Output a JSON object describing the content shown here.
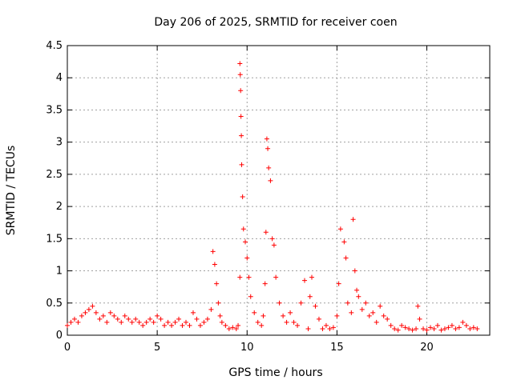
{
  "chart_data": {
    "type": "scatter",
    "title": "Day 206 of 2025, SRMTID for receiver coen",
    "xlabel": "GPS time / hours",
    "ylabel": "SRMTID / TECUs",
    "xlim": [
      0,
      23.5
    ],
    "ylim": [
      0,
      4.5
    ],
    "grid": true,
    "marker": "plus",
    "color": "#ff0000",
    "x_ticks": [
      {
        "value": 0,
        "label": "0"
      },
      {
        "value": 5,
        "label": "5"
      },
      {
        "value": 10,
        "label": "10"
      },
      {
        "value": 15,
        "label": "15"
      },
      {
        "value": 20,
        "label": "20"
      }
    ],
    "y_ticks": [
      {
        "value": 0,
        "label": "0"
      },
      {
        "value": 0.5,
        "label": "0.5"
      },
      {
        "value": 1,
        "label": "1"
      },
      {
        "value": 1.5,
        "label": "1.5"
      },
      {
        "value": 2,
        "label": "2"
      },
      {
        "value": 2.5,
        "label": "2.5"
      },
      {
        "value": 3,
        "label": "3"
      },
      {
        "value": 3.5,
        "label": "3.5"
      },
      {
        "value": 4,
        "label": "4"
      },
      {
        "value": 4.5,
        "label": "4.5"
      }
    ],
    "series": [
      {
        "name": "SRMTID",
        "x": [
          0.0,
          0.2,
          0.4,
          0.6,
          0.8,
          1.0,
          1.2,
          1.4,
          1.6,
          1.8,
          2.0,
          2.2,
          2.4,
          2.6,
          2.8,
          3.0,
          3.2,
          3.4,
          3.6,
          3.8,
          4.0,
          4.2,
          4.4,
          4.6,
          4.8,
          5.0,
          5.2,
          5.4,
          5.6,
          5.8,
          6.0,
          6.2,
          6.4,
          6.6,
          6.8,
          7.0,
          7.2,
          7.4,
          7.6,
          7.8,
          8.0,
          8.1,
          8.2,
          8.3,
          8.4,
          8.5,
          8.6,
          8.8,
          9.0,
          9.2,
          9.4,
          9.5,
          9.6,
          9.6,
          9.62,
          9.64,
          9.66,
          9.68,
          9.7,
          9.75,
          9.8,
          9.9,
          10.0,
          10.1,
          10.2,
          10.4,
          10.6,
          10.8,
          10.9,
          11.0,
          11.05,
          11.1,
          11.15,
          11.2,
          11.3,
          11.4,
          11.5,
          11.6,
          11.8,
          12.0,
          12.2,
          12.4,
          12.6,
          12.8,
          13.0,
          13.2,
          13.4,
          13.5,
          13.6,
          13.8,
          14.0,
          14.2,
          14.4,
          14.6,
          14.8,
          15.0,
          15.1,
          15.2,
          15.4,
          15.5,
          15.6,
          15.8,
          15.9,
          16.0,
          16.1,
          16.2,
          16.4,
          16.6,
          16.8,
          17.0,
          17.2,
          17.4,
          17.6,
          17.8,
          18.0,
          18.2,
          18.4,
          18.6,
          18.8,
          19.0,
          19.2,
          19.4,
          19.5,
          19.6,
          19.8,
          20.0,
          20.2,
          20.4,
          20.6,
          20.8,
          21.0,
          21.2,
          21.4,
          21.6,
          21.8,
          22.0,
          22.2,
          22.4,
          22.6,
          22.8
        ],
        "y": [
          0.15,
          0.2,
          0.25,
          0.2,
          0.3,
          0.35,
          0.4,
          0.45,
          0.35,
          0.25,
          0.3,
          0.2,
          0.35,
          0.3,
          0.25,
          0.2,
          0.3,
          0.25,
          0.2,
          0.25,
          0.2,
          0.15,
          0.2,
          0.25,
          0.2,
          0.3,
          0.25,
          0.15,
          0.2,
          0.15,
          0.2,
          0.25,
          0.15,
          0.2,
          0.15,
          0.35,
          0.25,
          0.15,
          0.2,
          0.25,
          0.4,
          1.3,
          1.1,
          0.8,
          0.5,
          0.3,
          0.2,
          0.15,
          0.1,
          0.12,
          0.1,
          0.15,
          0.9,
          4.22,
          4.05,
          3.8,
          3.4,
          3.1,
          2.65,
          2.15,
          1.65,
          1.45,
          1.2,
          0.9,
          0.6,
          0.35,
          0.2,
          0.15,
          0.3,
          0.8,
          1.6,
          3.05,
          2.9,
          2.6,
          2.4,
          1.5,
          1.4,
          0.9,
          0.5,
          0.3,
          0.2,
          0.35,
          0.2,
          0.15,
          0.5,
          0.85,
          0.1,
          0.6,
          0.9,
          0.45,
          0.25,
          0.1,
          0.15,
          0.1,
          0.12,
          0.3,
          0.8,
          1.65,
          1.45,
          1.2,
          0.5,
          0.35,
          1.8,
          1.0,
          0.7,
          0.6,
          0.4,
          0.5,
          0.3,
          0.35,
          0.2,
          0.45,
          0.3,
          0.25,
          0.15,
          0.1,
          0.08,
          0.15,
          0.12,
          0.1,
          0.08,
          0.1,
          0.45,
          0.25,
          0.1,
          0.08,
          0.12,
          0.1,
          0.15,
          0.08,
          0.1,
          0.12,
          0.15,
          0.1,
          0.12,
          0.2,
          0.15,
          0.1,
          0.12,
          0.1
        ]
      }
    ]
  }
}
